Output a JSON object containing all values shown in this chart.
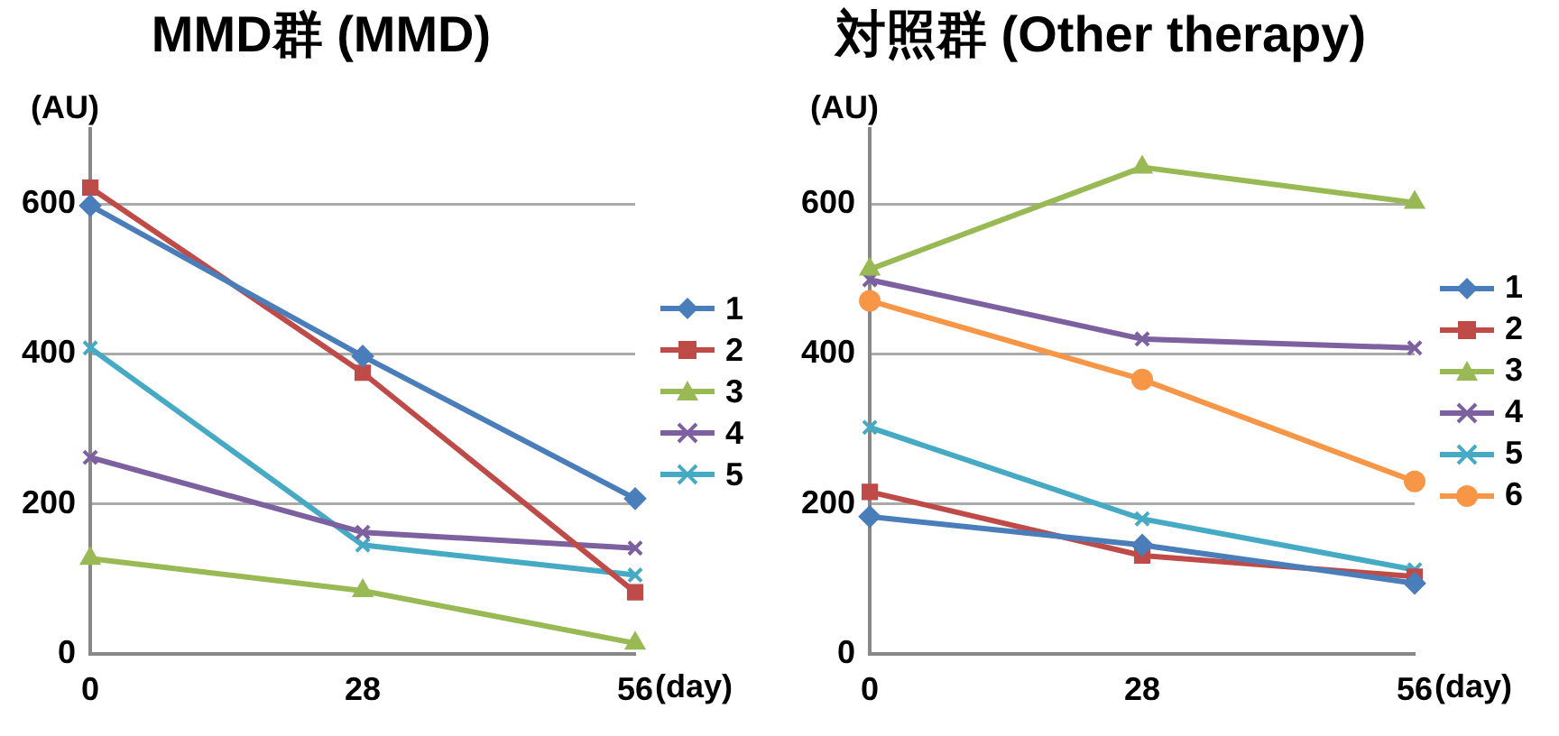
{
  "chart_data": [
    {
      "type": "line",
      "title": "MMD群 (MMD)",
      "xlabel": "(day)",
      "ylabel": "(AU)",
      "categories": [
        "0",
        "28",
        "56"
      ],
      "ylim": [
        0,
        700
      ],
      "yticks": [
        0,
        200,
        400,
        600
      ],
      "grid": "y",
      "legend": "right",
      "series": [
        {
          "name": "1",
          "color": "#4a7ebb",
          "marker": "diamond",
          "values": [
            598,
            397,
            207
          ]
        },
        {
          "name": "2",
          "color": "#be4b48",
          "marker": "square",
          "values": [
            622,
            375,
            82
          ]
        },
        {
          "name": "3",
          "color": "#98b954",
          "marker": "triangle",
          "values": [
            127,
            84,
            14
          ]
        },
        {
          "name": "4",
          "color": "#7d60a0",
          "marker": "cross",
          "values": [
            262,
            162,
            141
          ]
        },
        {
          "name": "5",
          "color": "#46aac5",
          "marker": "cross",
          "values": [
            408,
            145,
            105
          ]
        }
      ]
    },
    {
      "type": "line",
      "title": "対照群 (Other therapy)",
      "xlabel": "(day)",
      "ylabel": "(AU)",
      "categories": [
        "0",
        "28",
        "56"
      ],
      "ylim": [
        0,
        700
      ],
      "yticks": [
        0,
        200,
        400,
        600
      ],
      "grid": "y",
      "legend": "right",
      "series": [
        {
          "name": "1",
          "color": "#4a7ebb",
          "marker": "diamond",
          "values": [
            183,
            145,
            94
          ]
        },
        {
          "name": "2",
          "color": "#be4b48",
          "marker": "square",
          "values": [
            216,
            131,
            103
          ]
        },
        {
          "name": "3",
          "color": "#98b954",
          "marker": "triangle",
          "values": [
            513,
            649,
            602
          ]
        },
        {
          "name": "4",
          "color": "#7d60a0",
          "marker": "cross",
          "values": [
            499,
            420,
            408
          ]
        },
        {
          "name": "5",
          "color": "#46aac5",
          "marker": "cross",
          "values": [
            302,
            180,
            112
          ]
        },
        {
          "name": "6",
          "color": "#f79646",
          "marker": "circle",
          "values": [
            471,
            366,
            230
          ]
        }
      ]
    }
  ]
}
